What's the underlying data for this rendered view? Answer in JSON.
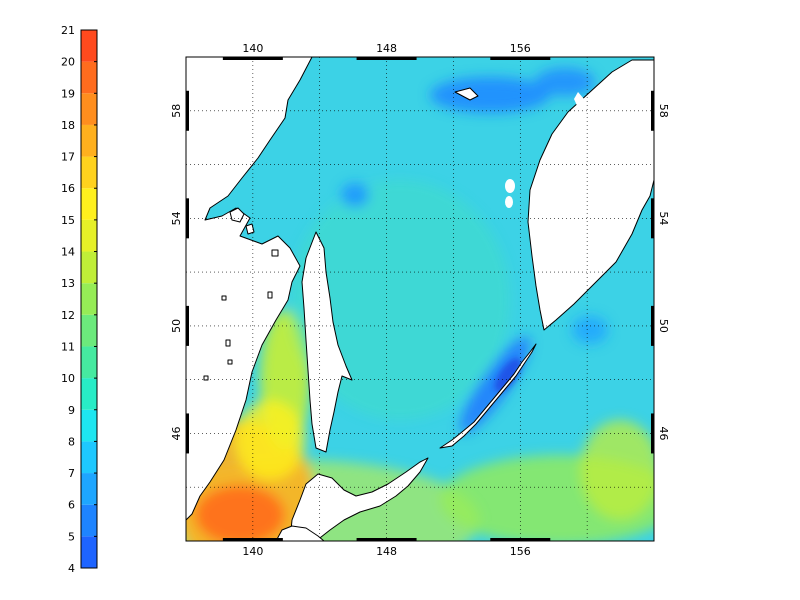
{
  "colorbar": {
    "min": 4,
    "max": 21,
    "ticks": [
      "4",
      "5",
      "6",
      "7",
      "8",
      "9",
      "10",
      "11",
      "12",
      "13",
      "14",
      "15",
      "16",
      "17",
      "18",
      "19",
      "20",
      "21"
    ],
    "colors": [
      "#1e64ff",
      "#1e84ff",
      "#1ea6ff",
      "#1ec8ff",
      "#1ee6f0",
      "#28ecc6",
      "#46eaa0",
      "#6cea7c",
      "#96ec56",
      "#c0ee38",
      "#e6f028",
      "#fff01e",
      "#ffd21e",
      "#ffb01e",
      "#ff8e1e",
      "#ff6c1e",
      "#ff4a1e"
    ]
  },
  "map": {
    "lon_range": [
      136,
      164
    ],
    "lat_range": [
      42,
      60
    ],
    "lon_ticks": [
      "140",
      "148",
      "156"
    ],
    "lat_ticks": [
      "46",
      "50",
      "54",
      "58"
    ],
    "land_color": "#ffffff",
    "coast_color": "#000000",
    "base_sea_color": "#3cd2e6"
  }
}
